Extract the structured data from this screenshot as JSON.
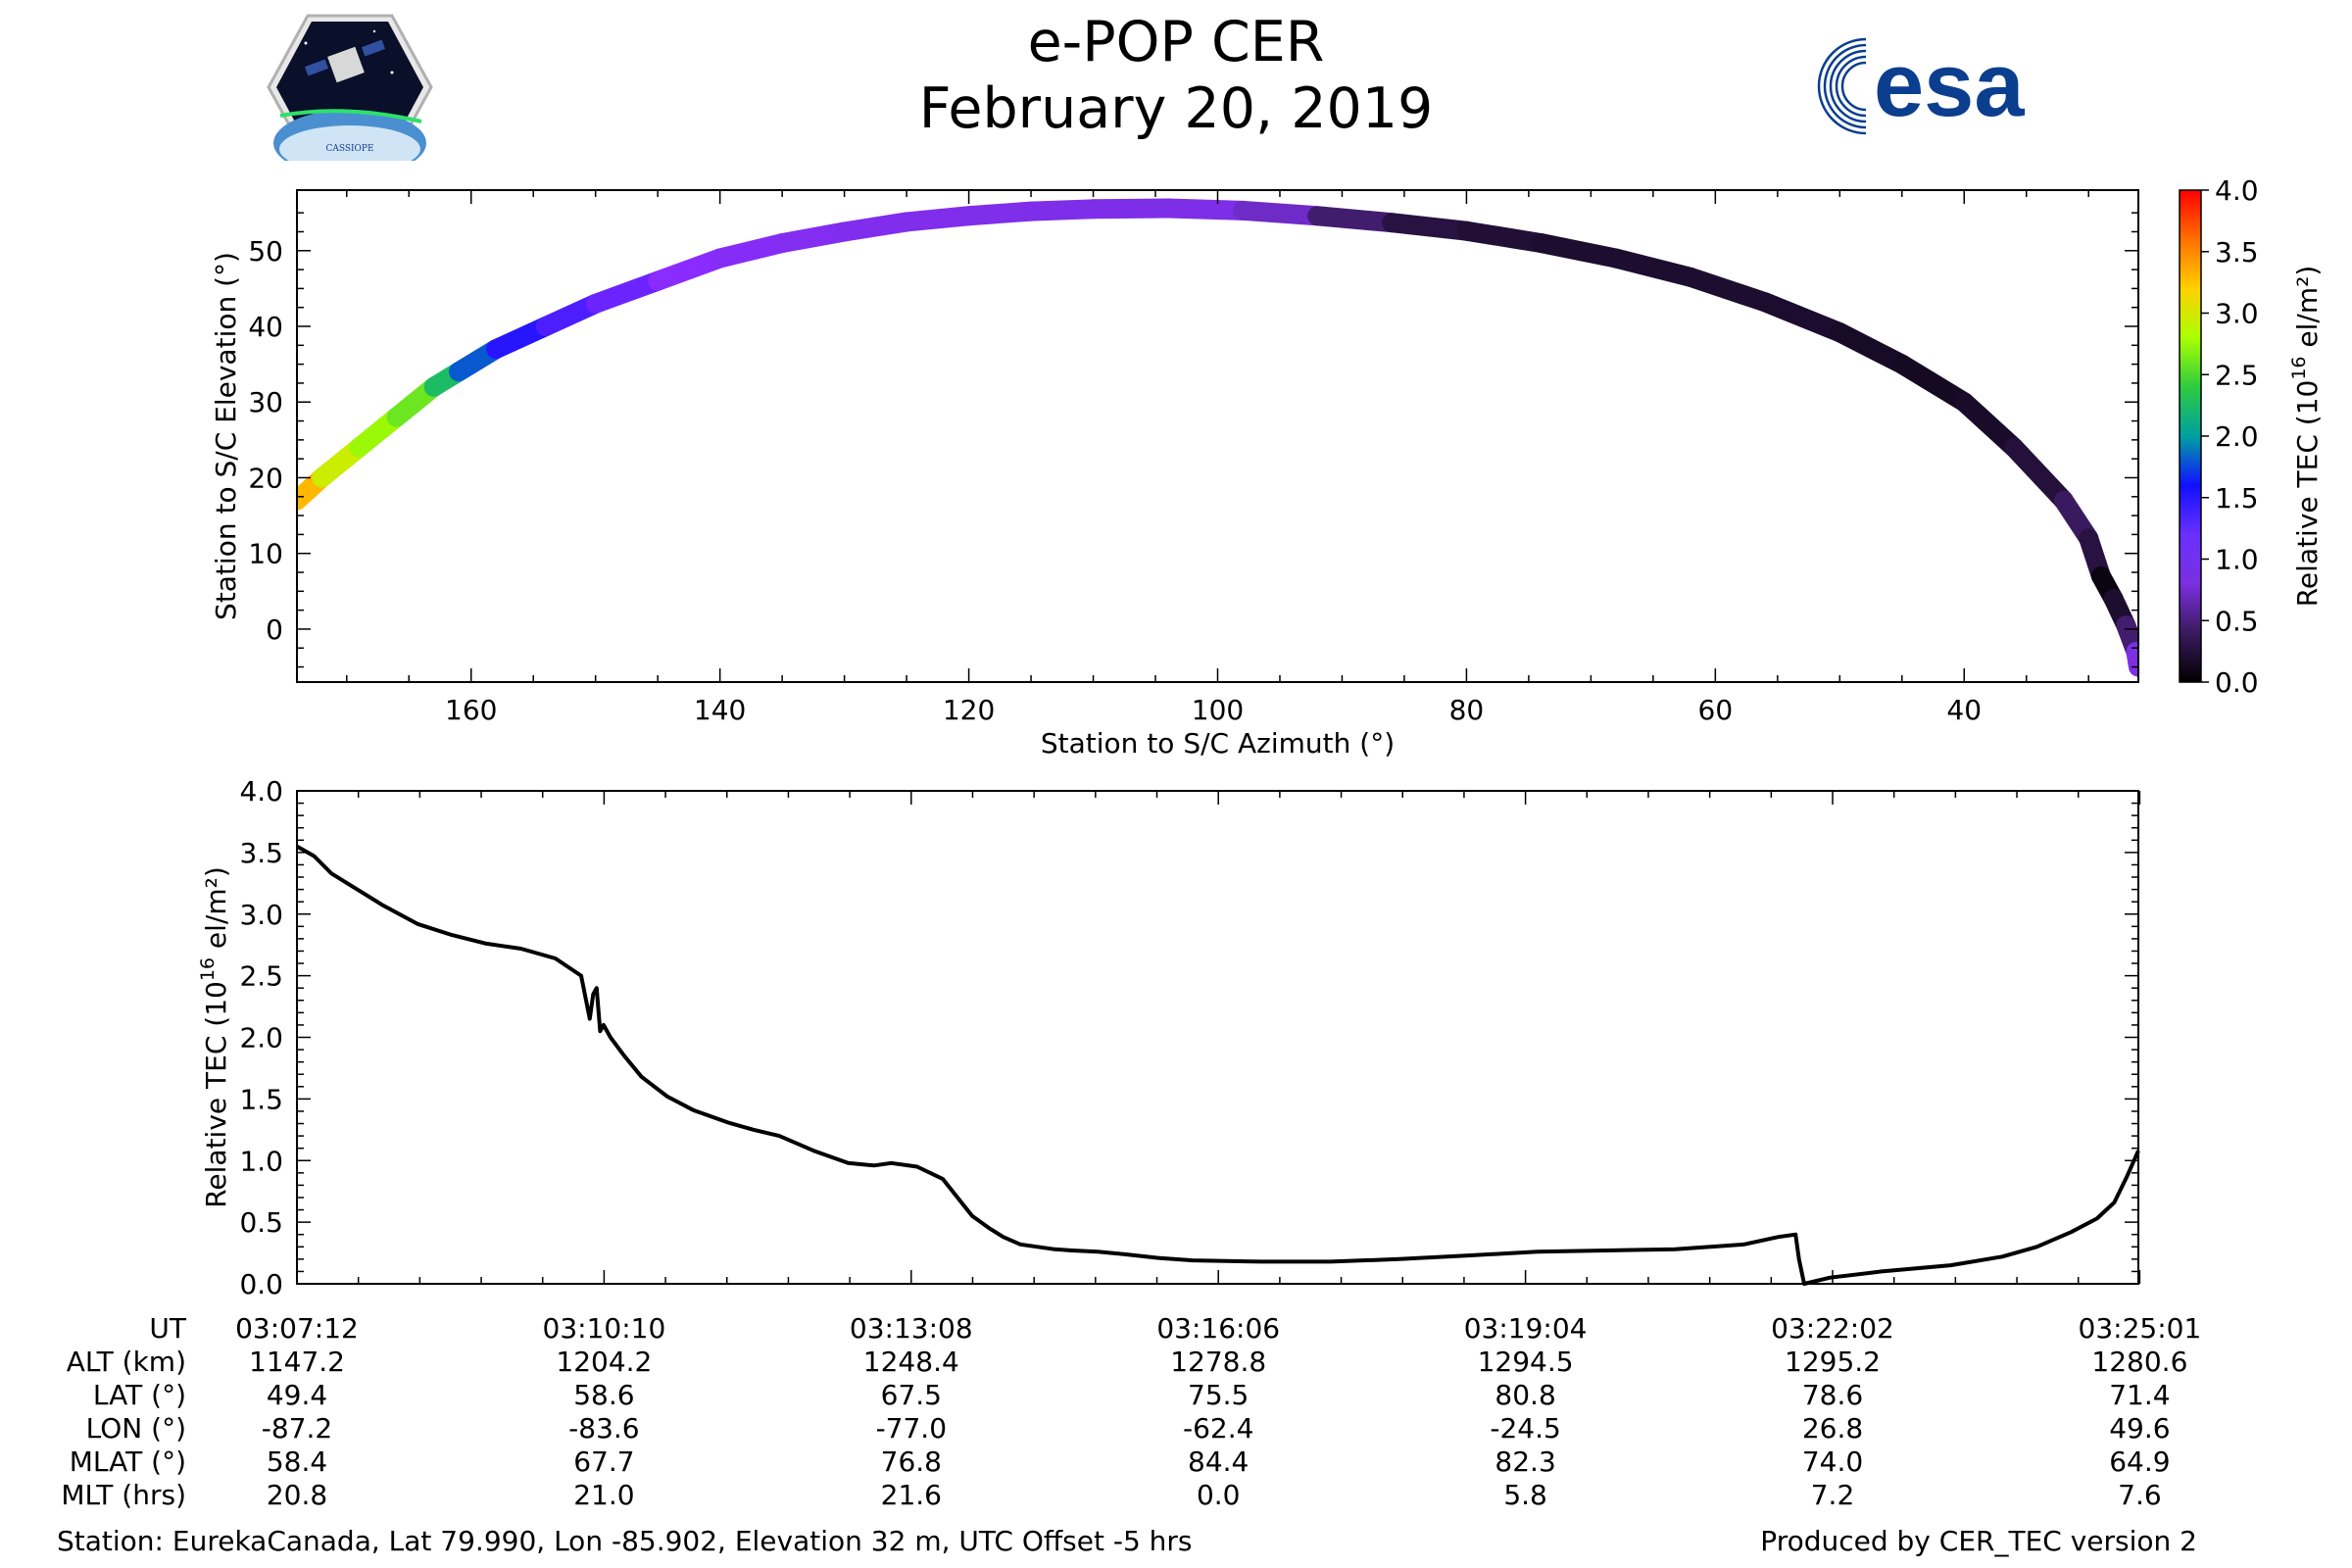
{
  "header": {
    "title": "e-POP CER",
    "date": "February 20, 2019",
    "logo_left_text": "CASSIOPE",
    "logo_right_text": "esa"
  },
  "colors": {
    "line": "#000000",
    "esa_blue": "#003c8f",
    "colormap": [
      "#000000",
      "#3a1a5e",
      "#7a2fe0",
      "#8a2bff",
      "#1010ff",
      "#00a0a0",
      "#2ecc40",
      "#aaff00",
      "#ffd000",
      "#ff7000",
      "#ff0000"
    ]
  },
  "footer": {
    "station": "Station: EurekaCanada, Lat 79.990, Lon -85.902, Elevation 32 m, UTC Offset -5 hrs",
    "produced": "Produced by CER_TEC version 2"
  },
  "table": {
    "rows": [
      {
        "label": "UT",
        "values": [
          "03:07:12",
          "03:10:10",
          "03:13:08",
          "03:16:06",
          "03:19:04",
          "03:22:02",
          "03:25:01"
        ]
      },
      {
        "label": "ALT (km)",
        "values": [
          "1147.2",
          "1204.2",
          "1248.4",
          "1278.8",
          "1294.5",
          "1295.2",
          "1280.6"
        ]
      },
      {
        "label": "LAT (°)",
        "values": [
          "49.4",
          "58.6",
          "67.5",
          "75.5",
          "80.8",
          "78.6",
          "71.4"
        ]
      },
      {
        "label": "LON (°)",
        "values": [
          "-87.2",
          "-83.6",
          "-77.0",
          "-62.4",
          "-24.5",
          "26.8",
          "49.6"
        ]
      },
      {
        "label": "MLAT (°)",
        "values": [
          "58.4",
          "67.7",
          "76.8",
          "84.4",
          "82.3",
          "74.0",
          "64.9"
        ]
      },
      {
        "label": "MLT (hrs)",
        "values": [
          "20.8",
          "21.0",
          "21.6",
          "0.0",
          "5.8",
          "7.2",
          "7.6"
        ]
      }
    ]
  },
  "chart_data": [
    {
      "type": "scatter",
      "title": "",
      "xlabel": "Station to S/C Azimuth (°)",
      "ylabel": "Station to S/C Elevation (°)",
      "xlim": [
        174,
        26
      ],
      "ylim": [
        -7,
        58
      ],
      "xticks": [
        160,
        140,
        120,
        100,
        80,
        60,
        40
      ],
      "yticks": [
        0,
        10,
        20,
        30,
        40,
        50
      ],
      "colorbar": {
        "label": "Relative TEC (10^16 el/m²)",
        "label_main": "Relative TEC (10",
        "label_sup": "16",
        "label_end": " el/m²)",
        "range": [
          0,
          4
        ],
        "ticks": [
          "0.0",
          "0.5",
          "1.0",
          "1.5",
          "2.0",
          "2.5",
          "3.0",
          "3.5",
          "4.0"
        ]
      },
      "points": [
        {
          "az": 174,
          "el": 17,
          "tec": 3.5
        },
        {
          "az": 172,
          "el": 20,
          "tec": 3.1
        },
        {
          "az": 169,
          "el": 24,
          "tec": 2.8
        },
        {
          "az": 166,
          "el": 28,
          "tec": 2.7
        },
        {
          "az": 163,
          "el": 32,
          "tec": 2.5
        },
        {
          "az": 161,
          "el": 34,
          "tec": 2.0
        },
        {
          "az": 158,
          "el": 37,
          "tec": 1.6
        },
        {
          "az": 154,
          "el": 40,
          "tec": 1.45
        },
        {
          "az": 150,
          "el": 43,
          "tec": 1.35
        },
        {
          "az": 145,
          "el": 46,
          "tec": 1.25
        },
        {
          "az": 140,
          "el": 49,
          "tec": 1.15
        },
        {
          "az": 135,
          "el": 51,
          "tec": 1.05
        },
        {
          "az": 130,
          "el": 52.5,
          "tec": 1.0
        },
        {
          "az": 125,
          "el": 53.8,
          "tec": 0.95
        },
        {
          "az": 120,
          "el": 54.6,
          "tec": 0.95
        },
        {
          "az": 115,
          "el": 55.2,
          "tec": 0.9
        },
        {
          "az": 110,
          "el": 55.5,
          "tec": 0.9
        },
        {
          "az": 104,
          "el": 55.6,
          "tec": 0.9
        },
        {
          "az": 98,
          "el": 55.3,
          "tec": 0.85
        },
        {
          "az": 92,
          "el": 54.6,
          "tec": 0.6
        },
        {
          "az": 86,
          "el": 53.7,
          "tec": 0.3
        },
        {
          "az": 80,
          "el": 52.6,
          "tec": 0.25
        },
        {
          "az": 74,
          "el": 51.0,
          "tec": 0.2
        },
        {
          "az": 68,
          "el": 49.0,
          "tec": 0.2
        },
        {
          "az": 62,
          "el": 46.5,
          "tec": 0.2
        },
        {
          "az": 56,
          "el": 43.2,
          "tec": 0.2
        },
        {
          "az": 50,
          "el": 39.2,
          "tec": 0.18
        },
        {
          "az": 45,
          "el": 35.0,
          "tec": 0.15
        },
        {
          "az": 40,
          "el": 30.0,
          "tec": 0.15
        },
        {
          "az": 36,
          "el": 24.0,
          "tec": 0.2
        },
        {
          "az": 32,
          "el": 17.0,
          "tec": 0.3
        },
        {
          "az": 30,
          "el": 12.0,
          "tec": 0.5
        },
        {
          "az": 29,
          "el": 7.0,
          "tec": 0.05
        },
        {
          "az": 28,
          "el": 4.0,
          "tec": 0.1
        },
        {
          "az": 27,
          "el": 0.5,
          "tec": 0.3
        },
        {
          "az": 26.2,
          "el": -3.0,
          "tec": 0.6
        },
        {
          "az": 26,
          "el": -5.0,
          "tec": 1.1
        }
      ]
    },
    {
      "type": "line",
      "title": "",
      "xlabel": "",
      "ylabel": "Relative TEC (10^16 el/m²)",
      "ylabel_main": "Relative TEC (10",
      "ylabel_sup": "16",
      "ylabel_end": " el/m²)",
      "xlim": [
        0,
        1069
      ],
      "ylim": [
        0,
        4.0
      ],
      "yticks": [
        "0.0",
        "0.5",
        "1.0",
        "1.5",
        "2.0",
        "2.5",
        "3.0",
        "3.5",
        "4.0"
      ],
      "xunit": "seconds after 03:07:12",
      "series": [
        {
          "name": "Relative TEC",
          "x": [
            0,
            10,
            20,
            35,
            50,
            70,
            90,
            110,
            130,
            150,
            165,
            170,
            172,
            174,
            176,
            178,
            182,
            190,
            200,
            215,
            230,
            250,
            265,
            280,
            300,
            320,
            335,
            345,
            360,
            375,
            392,
            402,
            410,
            420,
            430,
            440,
            450,
            465,
            480,
            500,
            520,
            560,
            600,
            640,
            680,
            720,
            760,
            800,
            840,
            860,
            870,
            872,
            875,
            890,
            920,
            960,
            990,
            1010,
            1030,
            1045,
            1055,
            1062,
            1069
          ],
          "y": [
            3.55,
            3.47,
            3.33,
            3.2,
            3.07,
            2.92,
            2.83,
            2.76,
            2.72,
            2.64,
            2.5,
            2.15,
            2.35,
            2.4,
            2.05,
            2.1,
            2.0,
            1.85,
            1.68,
            1.52,
            1.41,
            1.31,
            1.25,
            1.2,
            1.08,
            0.98,
            0.96,
            0.98,
            0.95,
            0.85,
            0.55,
            0.45,
            0.38,
            0.32,
            0.3,
            0.28,
            0.27,
            0.26,
            0.24,
            0.21,
            0.19,
            0.18,
            0.18,
            0.2,
            0.23,
            0.26,
            0.27,
            0.28,
            0.32,
            0.38,
            0.4,
            0.2,
            0.0,
            0.05,
            0.1,
            0.15,
            0.22,
            0.3,
            0.42,
            0.53,
            0.66,
            0.86,
            1.08
          ]
        }
      ]
    }
  ]
}
